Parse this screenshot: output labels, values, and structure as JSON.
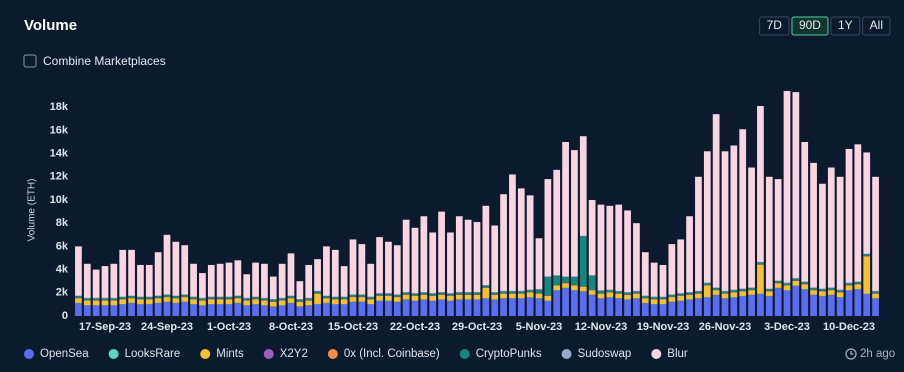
{
  "header": {
    "title": "Volume",
    "range_buttons": [
      "7D",
      "90D",
      "1Y",
      "All"
    ],
    "active_range_index": 1,
    "toggle_label": "Combine Marketplaces",
    "updated": "2h ago"
  },
  "chart_data": {
    "type": "stacked_bar",
    "ylabel": "Volume (ETH)",
    "ylim": [
      0,
      20000
    ],
    "yticks": [
      0,
      {
        "value": 2000,
        "label": "2k"
      },
      {
        "value": 4000,
        "label": "4k"
      },
      {
        "value": 6000,
        "label": "6k"
      },
      {
        "value": 8000,
        "label": "8k"
      },
      {
        "value": 10000,
        "label": "10k"
      },
      {
        "value": 12000,
        "label": "12k"
      },
      {
        "value": 14000,
        "label": "14k"
      },
      {
        "value": 16000,
        "label": "16k"
      },
      {
        "value": 18000,
        "label": "18k"
      }
    ],
    "categories": [
      null,
      null,
      null,
      "17-Sep-23",
      null,
      null,
      null,
      null,
      null,
      null,
      "24-Sep-23",
      null,
      null,
      null,
      null,
      null,
      null,
      "1-Oct-23",
      null,
      null,
      null,
      null,
      null,
      null,
      "8-Oct-23",
      null,
      null,
      null,
      null,
      null,
      null,
      "15-Oct-23",
      null,
      null,
      null,
      null,
      null,
      null,
      "22-Oct-23",
      null,
      null,
      null,
      null,
      null,
      null,
      "29-Oct-23",
      null,
      null,
      null,
      null,
      null,
      null,
      "5-Nov-23",
      null,
      null,
      null,
      null,
      null,
      null,
      "12-Nov-23",
      null,
      null,
      null,
      null,
      null,
      null,
      "19-Nov-23",
      null,
      null,
      null,
      null,
      null,
      null,
      "26-Nov-23",
      null,
      null,
      null,
      null,
      null,
      null,
      "3-Dec-23",
      null,
      null,
      null,
      null,
      null,
      null,
      "10-Dec-23",
      null,
      null,
      null
    ],
    "series": [
      {
        "name": "OpenSea",
        "color": "#5a6cf0",
        "values": [
          1100,
          900,
          900,
          900,
          900,
          1000,
          1100,
          1000,
          1000,
          1100,
          1200,
          1100,
          1200,
          1000,
          900,
          1000,
          1000,
          1000,
          1100,
          900,
          1000,
          900,
          800,
          900,
          1100,
          800,
          900,
          1000,
          1100,
          1000,
          1000,
          1200,
          1200,
          1000,
          1300,
          1300,
          1200,
          1400,
          1300,
          1400,
          1300,
          1400,
          1300,
          1400,
          1400,
          1400,
          1500,
          1400,
          1500,
          1500,
          1500,
          1600,
          1500,
          1300,
          2200,
          2400,
          2200,
          2100,
          1800,
          1500,
          1600,
          1500,
          1400,
          1500,
          1100,
          1000,
          1000,
          1200,
          1300,
          1400,
          1500,
          1600,
          1800,
          1500,
          1600,
          1700,
          1800,
          1900,
          1700,
          2400,
          2200,
          2600,
          2300,
          1800,
          1700,
          1800,
          1600,
          2200,
          2300,
          1900,
          1500
        ]
      },
      {
        "name": "LooksRare",
        "color": "#5fd3c6",
        "values": [
          30,
          30,
          30,
          30,
          30,
          30,
          30,
          30,
          30,
          30,
          30,
          30,
          30,
          30,
          30,
          30,
          30,
          30,
          30,
          30,
          30,
          30,
          30,
          30,
          30,
          30,
          30,
          30,
          30,
          30,
          30,
          30,
          30,
          30,
          30,
          30,
          30,
          30,
          30,
          30,
          30,
          30,
          30,
          30,
          30,
          30,
          30,
          30,
          30,
          30,
          30,
          30,
          30,
          30,
          30,
          30,
          30,
          30,
          30,
          30,
          30,
          30,
          30,
          30,
          30,
          30,
          30,
          30,
          30,
          30,
          30,
          30,
          30,
          30,
          30,
          30,
          30,
          30,
          30,
          30,
          30,
          30,
          30,
          30,
          30,
          30,
          30,
          30,
          30,
          30,
          30
        ]
      },
      {
        "name": "Mints",
        "color": "#f5c031",
        "values": [
          400,
          400,
          400,
          400,
          400,
          400,
          400,
          400,
          400,
          400,
          400,
          400,
          400,
          400,
          400,
          400,
          400,
          400,
          400,
          400,
          400,
          400,
          400,
          400,
          400,
          400,
          400,
          900,
          400,
          400,
          400,
          400,
          400,
          400,
          400,
          400,
          400,
          400,
          400,
          400,
          400,
          400,
          400,
          400,
          400,
          400,
          900,
          400,
          400,
          400,
          400,
          400,
          400,
          400,
          400,
          400,
          400,
          400,
          400,
          400,
          400,
          400,
          400,
          400,
          400,
          400,
          400,
          400,
          400,
          400,
          400,
          1000,
          400,
          400,
          400,
          400,
          400,
          2500,
          400,
          400,
          400,
          400,
          400,
          400,
          400,
          400,
          400,
          400,
          400,
          3200,
          400
        ]
      },
      {
        "name": "X2Y2",
        "color": "#9b5fc0",
        "values": [
          20,
          20,
          20,
          20,
          20,
          20,
          20,
          20,
          20,
          20,
          20,
          20,
          20,
          20,
          20,
          20,
          20,
          20,
          20,
          20,
          20,
          20,
          20,
          20,
          20,
          20,
          20,
          20,
          20,
          20,
          20,
          20,
          20,
          20,
          20,
          20,
          20,
          20,
          20,
          20,
          20,
          20,
          20,
          20,
          20,
          20,
          20,
          20,
          20,
          20,
          20,
          20,
          20,
          20,
          20,
          20,
          20,
          20,
          20,
          20,
          20,
          20,
          20,
          20,
          20,
          20,
          20,
          20,
          20,
          20,
          20,
          20,
          20,
          20,
          20,
          20,
          20,
          20,
          20,
          20,
          20,
          20,
          20,
          20,
          20,
          20,
          20,
          20,
          20,
          20,
          20
        ]
      },
      {
        "name": "0x (Incl. Coinbase)",
        "color": "#f28c4b",
        "values": [
          20,
          20,
          20,
          20,
          20,
          20,
          20,
          20,
          20,
          20,
          20,
          20,
          20,
          20,
          20,
          20,
          20,
          20,
          20,
          20,
          20,
          20,
          20,
          20,
          20,
          20,
          20,
          20,
          20,
          20,
          20,
          20,
          20,
          20,
          20,
          20,
          20,
          20,
          20,
          20,
          20,
          20,
          20,
          20,
          20,
          20,
          20,
          20,
          20,
          20,
          20,
          20,
          20,
          20,
          20,
          20,
          20,
          20,
          20,
          20,
          20,
          20,
          20,
          20,
          20,
          20,
          20,
          20,
          20,
          20,
          20,
          20,
          20,
          20,
          20,
          20,
          20,
          20,
          20,
          20,
          20,
          20,
          20,
          20,
          20,
          20,
          20,
          20,
          20,
          20,
          20
        ]
      },
      {
        "name": "CryptoPunks",
        "color": "#15877e",
        "values": [
          150,
          150,
          150,
          150,
          150,
          150,
          150,
          150,
          150,
          150,
          150,
          150,
          150,
          150,
          150,
          150,
          150,
          150,
          150,
          150,
          150,
          150,
          150,
          150,
          150,
          150,
          150,
          150,
          150,
          150,
          150,
          150,
          150,
          150,
          150,
          150,
          150,
          150,
          150,
          150,
          150,
          150,
          150,
          150,
          150,
          150,
          150,
          150,
          150,
          150,
          150,
          150,
          300,
          1600,
          800,
          500,
          700,
          4300,
          1200,
          200,
          150,
          150,
          150,
          150,
          150,
          150,
          150,
          150,
          150,
          150,
          150,
          150,
          150,
          150,
          150,
          150,
          150,
          150,
          150,
          150,
          150,
          150,
          150,
          150,
          150,
          150,
          150,
          150,
          150,
          150,
          150
        ]
      },
      {
        "name": "Sudoswap",
        "color": "#9aa9c8",
        "values": [
          40,
          40,
          40,
          40,
          40,
          40,
          40,
          40,
          40,
          40,
          40,
          40,
          40,
          40,
          40,
          40,
          40,
          40,
          40,
          40,
          40,
          40,
          40,
          40,
          40,
          40,
          40,
          40,
          40,
          40,
          40,
          40,
          40,
          40,
          40,
          40,
          40,
          40,
          40,
          40,
          40,
          40,
          40,
          40,
          40,
          40,
          40,
          40,
          40,
          40,
          40,
          40,
          40,
          40,
          40,
          40,
          40,
          40,
          40,
          40,
          40,
          40,
          40,
          40,
          40,
          40,
          40,
          40,
          40,
          40,
          40,
          40,
          40,
          40,
          40,
          40,
          40,
          40,
          40,
          40,
          40,
          40,
          40,
          40,
          40,
          40,
          40,
          40,
          40,
          40,
          40
        ]
      },
      {
        "name": "Blur",
        "color": "#f9d4e1",
        "values": [
          4240,
          2940,
          2440,
          2740,
          2940,
          4040,
          3940,
          2740,
          2740,
          3740,
          5140,
          4640,
          4240,
          2840,
          2140,
          2740,
          2840,
          2940,
          3040,
          2040,
          2940,
          2940,
          1940,
          2940,
          3640,
          1540,
          2840,
          2740,
          4240,
          4040,
          2640,
          4740,
          4340,
          2840,
          4840,
          4440,
          4240,
          6240,
          5640,
          6540,
          5240,
          6940,
          5240,
          6540,
          6240,
          6040,
          6840,
          5740,
          8340,
          10040,
          8840,
          8140,
          4390,
          8390,
          9090,
          11590,
          10890,
          8590,
          6490,
          7390,
          7240,
          7440,
          7040,
          5840,
          3740,
          2940,
          2740,
          4340,
          4640,
          6540,
          9840,
          11340,
          14940,
          12040,
          12440,
          13740,
          10340,
          13440,
          9640,
          8740,
          16540,
          16040,
          12040,
          10740,
          9040,
          10340,
          9740,
          11540,
          11840,
          8740,
          9840
        ]
      }
    ]
  }
}
